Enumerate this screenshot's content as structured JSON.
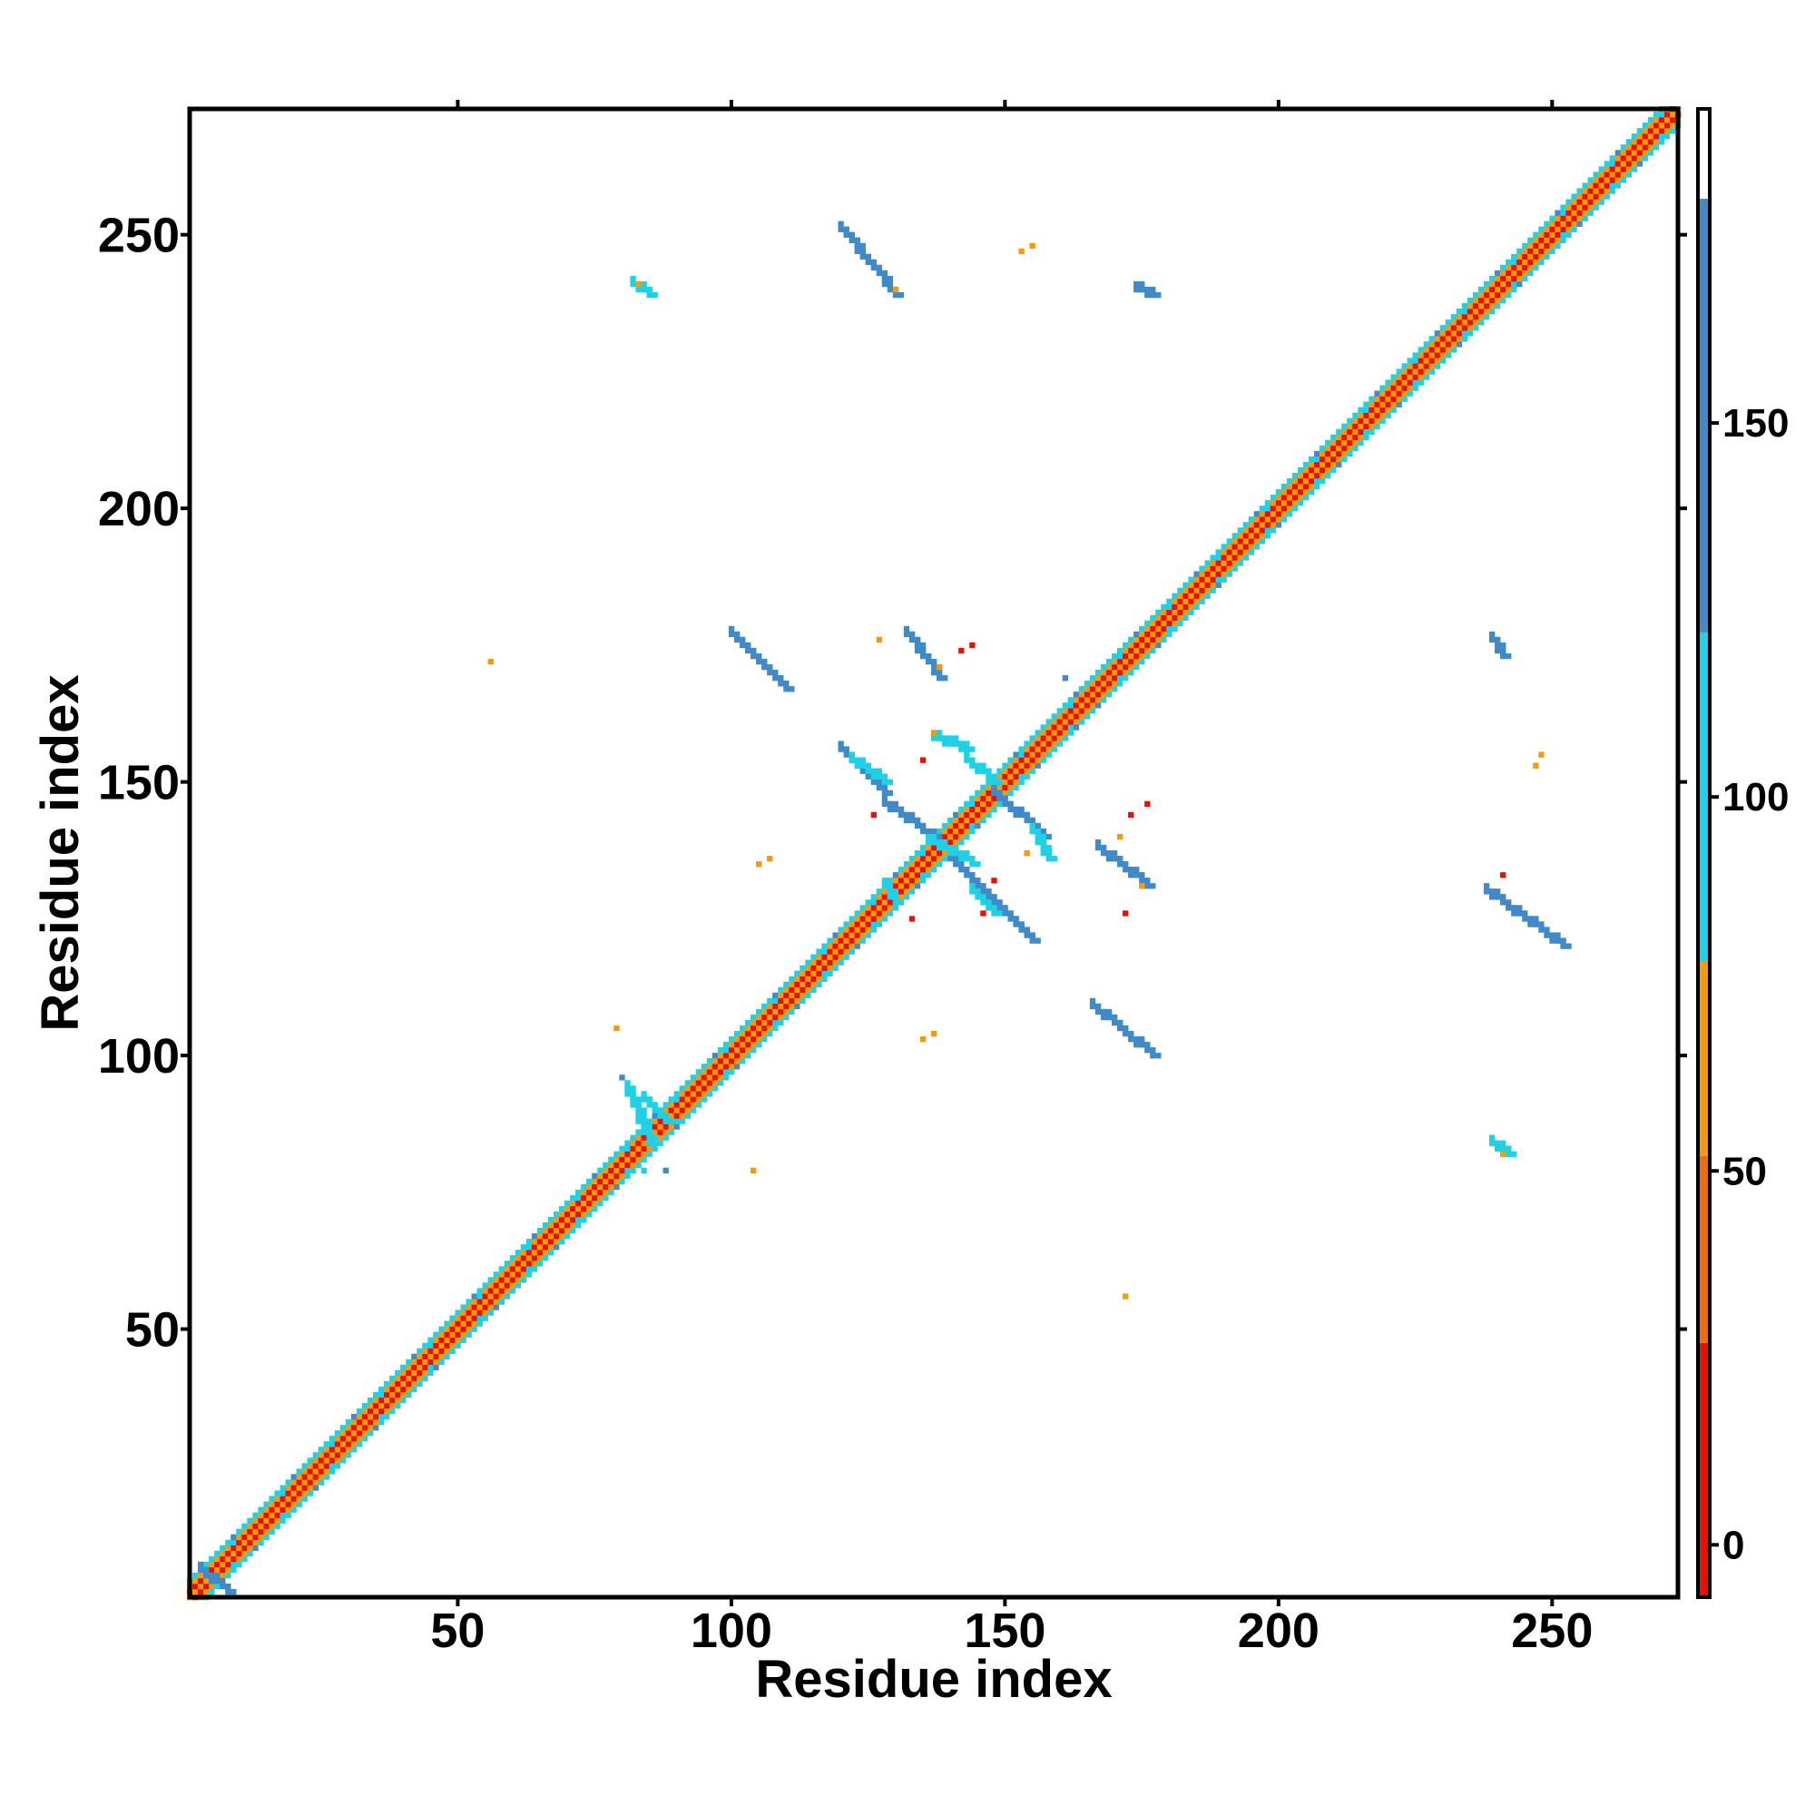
{
  "chart_data": {
    "type": "heatmap",
    "xlabel": "Residue index",
    "ylabel": "Residue index",
    "xlim": [
      1,
      273
    ],
    "ylim": [
      1,
      273
    ],
    "x_ticks": [
      50,
      100,
      150,
      200,
      250
    ],
    "y_ticks": [
      50,
      100,
      150,
      200,
      250
    ],
    "colorbar": {
      "ticks": [
        0,
        50,
        100,
        150
      ],
      "range": [
        -7,
        192
      ],
      "bands": [
        {
          "from": -7,
          "to": 27,
          "color": "#e6120a"
        },
        {
          "from": 27,
          "to": 52,
          "color": "#ef6a10"
        },
        {
          "from": 52,
          "to": 78,
          "color": "#f59a0c"
        },
        {
          "from": 78,
          "to": 122,
          "color": "#20d0e4"
        },
        {
          "from": 122,
          "to": 180,
          "color": "#3f8ac7"
        },
        {
          "from": 180,
          "to": 192,
          "color": "#ffffff"
        }
      ]
    },
    "grid": false,
    "diagonal_band": {
      "start": 1,
      "end": 273
    },
    "segments": [
      {
        "x": [
          120,
          130
        ],
        "y": [
          251,
          239
        ],
        "value": 140
      },
      {
        "x": [
          100,
          110
        ],
        "y": [
          177,
          167
        ],
        "value": 140
      },
      {
        "x": [
          132,
          138
        ],
        "y": [
          177,
          169
        ],
        "value": 140
      },
      {
        "x": [
          120,
          128
        ],
        "y": [
          156,
          148
        ],
        "value": 140
      },
      {
        "x": [
          128,
          138
        ],
        "y": [
          146,
          139
        ],
        "value": 140
      },
      {
        "x": [
          140,
          155
        ],
        "y": [
          136,
          121
        ],
        "value": 140
      },
      {
        "x": [
          166,
          177
        ],
        "y": [
          109,
          100
        ],
        "value": 140
      },
      {
        "x": [
          167,
          176
        ],
        "y": [
          138,
          131
        ],
        "value": 140
      },
      {
        "x": [
          238,
          252
        ],
        "y": [
          130,
          120
        ],
        "value": 140
      },
      {
        "x": [
          148,
          157
        ],
        "y": [
          148,
          140
        ],
        "value": 140
      },
      {
        "x": [
          137,
          143
        ],
        "y": [
          158,
          156
        ],
        "value": 95
      },
      {
        "x": [
          143,
          148
        ],
        "y": [
          154,
          150
        ],
        "value": 95
      },
      {
        "x": [
          155,
          158
        ],
        "y": [
          141,
          136
        ],
        "value": 95
      },
      {
        "x": [
          136,
          144
        ],
        "y": [
          139,
          135
        ],
        "value": 95
      },
      {
        "x": [
          144,
          148
        ],
        "y": [
          130,
          126
        ],
        "value": 95
      },
      {
        "x": [
          122,
          128
        ],
        "y": [
          154,
          150
        ],
        "value": 95
      },
      {
        "x": [
          81,
          85
        ],
        "y": [
          94,
          84
        ],
        "value": 95
      },
      {
        "x": [
          84,
          88
        ],
        "y": [
          92,
          88
        ],
        "value": 95
      },
      {
        "x": [
          3,
          8
        ],
        "y": [
          6,
          2
        ],
        "value": 150
      },
      {
        "x": [
          82,
          85
        ],
        "y": [
          241,
          239
        ],
        "value": 105
      },
      {
        "x": [
          174,
          177
        ],
        "y": [
          240,
          239
        ],
        "value": 140
      },
      {
        "x": [
          239,
          241
        ],
        "y": [
          176,
          173
        ],
        "value": 140
      },
      {
        "x": [
          239,
          242
        ],
        "y": [
          84,
          82
        ],
        "value": 110
      },
      {
        "x": [
          128,
          130
        ],
        "y": [
          131,
          128
        ],
        "value": 105
      }
    ],
    "points": [
      {
        "x": 153,
        "y": 247,
        "value": 55
      },
      {
        "x": 155,
        "y": 248,
        "value": 55
      },
      {
        "x": 130,
        "y": 240,
        "value": 60
      },
      {
        "x": 83,
        "y": 241,
        "value": 60
      },
      {
        "x": 56,
        "y": 172,
        "value": 55
      },
      {
        "x": 127,
        "y": 176,
        "value": 55
      },
      {
        "x": 138,
        "y": 171,
        "value": 60
      },
      {
        "x": 142,
        "y": 174,
        "value": 10
      },
      {
        "x": 144,
        "y": 175,
        "value": 10
      },
      {
        "x": 137,
        "y": 159,
        "value": 60
      },
      {
        "x": 135,
        "y": 154,
        "value": 10
      },
      {
        "x": 126,
        "y": 144,
        "value": 10
      },
      {
        "x": 105,
        "y": 135,
        "value": 55
      },
      {
        "x": 107,
        "y": 136,
        "value": 55
      },
      {
        "x": 171,
        "y": 140,
        "value": 60
      },
      {
        "x": 173,
        "y": 144,
        "value": 10
      },
      {
        "x": 176,
        "y": 146,
        "value": 10
      },
      {
        "x": 175,
        "y": 131,
        "value": 65
      },
      {
        "x": 172,
        "y": 126,
        "value": 10
      },
      {
        "x": 146,
        "y": 126,
        "value": 10
      },
      {
        "x": 148,
        "y": 132,
        "value": 10
      },
      {
        "x": 154,
        "y": 137,
        "value": 60
      },
      {
        "x": 133,
        "y": 125,
        "value": 10
      },
      {
        "x": 248,
        "y": 155,
        "value": 60
      },
      {
        "x": 247,
        "y": 153,
        "value": 60
      },
      {
        "x": 241,
        "y": 133,
        "value": 10
      },
      {
        "x": 241,
        "y": 82,
        "value": 55
      },
      {
        "x": 135,
        "y": 103,
        "value": 55
      },
      {
        "x": 137,
        "y": 104,
        "value": 55
      },
      {
        "x": 79,
        "y": 105,
        "value": 55
      },
      {
        "x": 104,
        "y": 79,
        "value": 55
      },
      {
        "x": 172,
        "y": 56,
        "value": 55
      },
      {
        "x": 161,
        "y": 169,
        "value": 140
      },
      {
        "x": 163,
        "y": 160,
        "value": 140
      },
      {
        "x": 80,
        "y": 96,
        "value": 140
      },
      {
        "x": 88,
        "y": 79,
        "value": 140
      },
      {
        "x": 84,
        "y": 79,
        "value": 95
      }
    ]
  }
}
